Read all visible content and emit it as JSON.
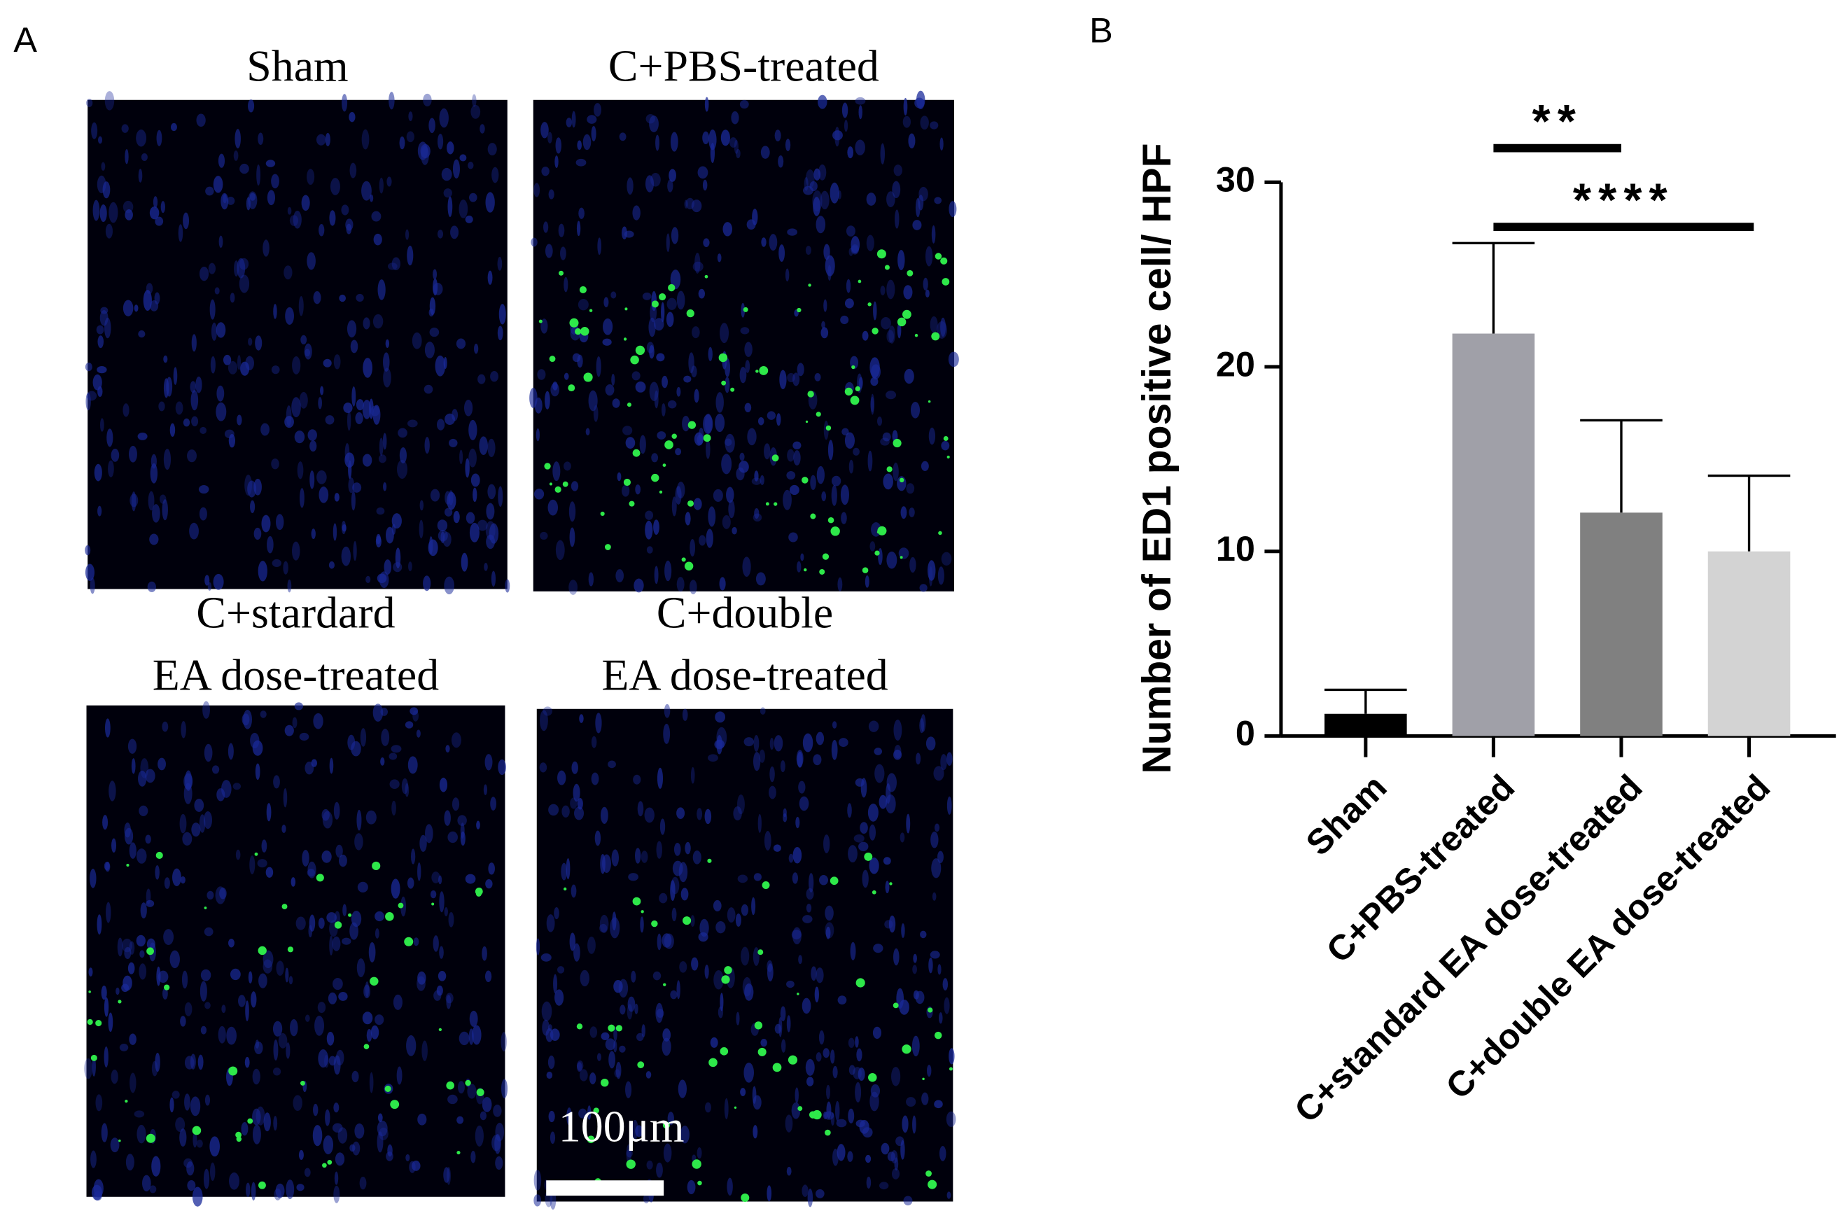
{
  "panel_a": {
    "label": "A",
    "panels": [
      {
        "title": [
          "Sham"
        ],
        "green": 0
      },
      {
        "title": [
          "C+PBS-treated"
        ],
        "green": 90
      },
      {
        "title": [
          "C+stardard",
          "EA dose-treated"
        ],
        "green": 45
      },
      {
        "title": [
          "C+double",
          "EA dose-treated"
        ],
        "green": 50
      }
    ],
    "scale_bar": "100μm"
  },
  "chart_data": {
    "type": "bar",
    "panel_label": "B",
    "y_label": "Number of ED1 positive cell/ HPF",
    "categories": [
      "Sham",
      "C+PBS-treated",
      "C+standard EA dose-treated",
      "C+double EA dose-treated"
    ],
    "values": [
      1.2,
      21.8,
      12.1,
      10.0
    ],
    "errors": [
      1.3,
      4.9,
      5.0,
      4.1
    ],
    "colors": [
      "#000000",
      "#a0a0a8",
      "#808080",
      "#d3d3d3"
    ],
    "ylim": [
      0,
      30
    ],
    "yticks": [
      0,
      10,
      20,
      30
    ],
    "significance": [
      {
        "from": 1,
        "to": 2,
        "label": "**"
      },
      {
        "from": 1,
        "to": 3,
        "label": "****"
      }
    ]
  }
}
